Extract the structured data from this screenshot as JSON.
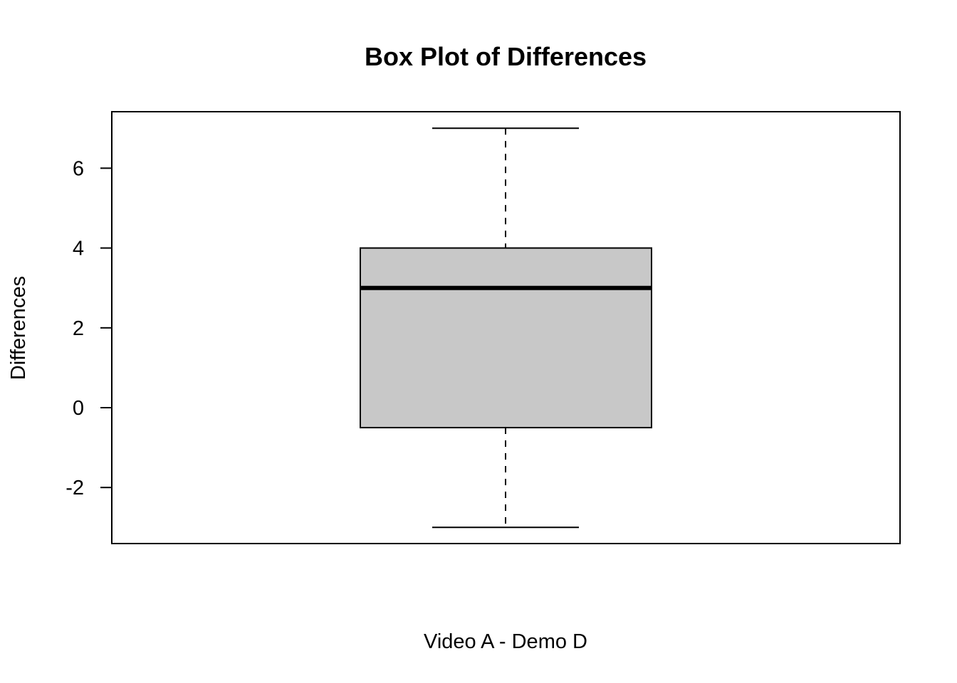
{
  "chart_data": {
    "type": "box",
    "title": "Box Plot of Differences",
    "xlabel": "Video A - Demo D",
    "ylabel": "Differences",
    "yticks": [
      -2,
      0,
      2,
      4,
      6
    ],
    "ytick_labels": [
      "-2",
      "0",
      "2",
      "4",
      "6"
    ],
    "ylim": [
      -3.4,
      7.4
    ],
    "boxes": [
      {
        "min": -3,
        "q1": -0.5,
        "median": 3,
        "q3": 4,
        "max": 7
      }
    ],
    "box_fill": "#c8c8c8",
    "grid": false
  }
}
